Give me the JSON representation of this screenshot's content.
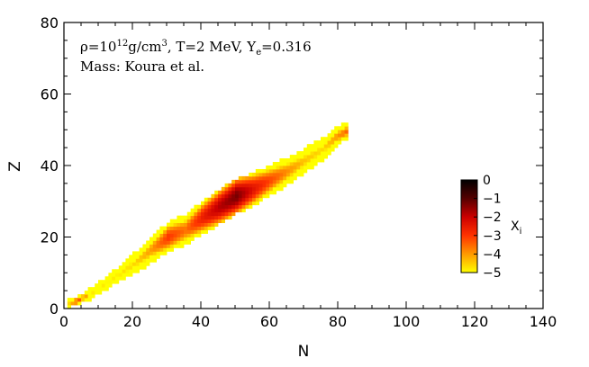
{
  "chart_data": {
    "type": "heatmap",
    "title": "",
    "xlabel": "N",
    "ylabel": "Z",
    "xlim": [
      0,
      140
    ],
    "ylim": [
      0,
      80
    ],
    "xticks": [
      "0",
      "20",
      "40",
      "60",
      "80",
      "100",
      "120",
      "140"
    ],
    "yticks": [
      "0",
      "20",
      "40",
      "60",
      "80"
    ],
    "annotation": {
      "rho": "ρ=10",
      "rho_exp": "12",
      "rho_unit": "g/cm",
      "rho_unit_exp": "3",
      "rest": ", T=2 MeV, Y",
      "ye_sub": "e",
      "ye_val": "=0.316",
      "mass": "Mass: Koura et al."
    },
    "colorbar": {
      "label": "X",
      "label_sub": "i",
      "range": [
        -5,
        0
      ],
      "ticks": [
        "0",
        "−1",
        "−2",
        "−3",
        "−4",
        "−5"
      ],
      "colors": [
        "#ffff00",
        "#ff9900",
        "#ff3300",
        "#cc0000",
        "#550000",
        "#000000"
      ]
    },
    "ridge": [
      {
        "N": 1,
        "Zc": 1,
        "hw": 0.6,
        "peak": -4.6
      },
      {
        "N": 3,
        "Zc": 1.5,
        "hw": 0.8,
        "peak": -3.0
      },
      {
        "N": 8,
        "Zc": 4,
        "hw": 1.1,
        "peak": -4.8
      },
      {
        "N": 14,
        "Zc": 8,
        "hw": 1.5,
        "peak": -4.8
      },
      {
        "N": 20,
        "Zc": 12,
        "hw": 2.5,
        "peak": -4.6
      },
      {
        "N": 25,
        "Zc": 16,
        "hw": 3.2,
        "peak": -4.0
      },
      {
        "N": 30,
        "Zc": 19.5,
        "hw": 3.8,
        "peak": -3.0
      },
      {
        "N": 35,
        "Zc": 21.5,
        "hw": 3.8,
        "peak": -3.6
      },
      {
        "N": 40,
        "Zc": 25,
        "hw": 4.2,
        "peak": -2.6
      },
      {
        "N": 45,
        "Zc": 28,
        "hw": 4.4,
        "peak": -1.8
      },
      {
        "N": 50,
        "Zc": 31,
        "hw": 4.4,
        "peak": -1.3
      },
      {
        "N": 55,
        "Zc": 33,
        "hw": 4.2,
        "peak": -2.4
      },
      {
        "N": 60,
        "Zc": 35.5,
        "hw": 3.8,
        "peak": -3.2
      },
      {
        "N": 65,
        "Zc": 38,
        "hw": 3.4,
        "peak": -3.9
      },
      {
        "N": 70,
        "Zc": 41,
        "hw": 3.0,
        "peak": -4.4
      },
      {
        "N": 75,
        "Zc": 44,
        "hw": 2.6,
        "peak": -4.6
      },
      {
        "N": 79,
        "Zc": 47.5,
        "hw": 2.4,
        "peak": -4.0
      },
      {
        "N": 82,
        "Zc": 49,
        "hw": 1.8,
        "peak": -3.5
      }
    ]
  }
}
